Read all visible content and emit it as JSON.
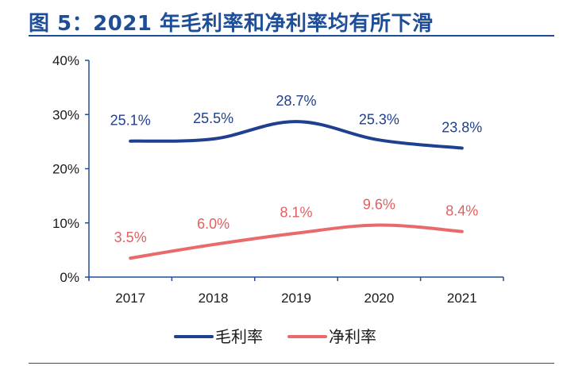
{
  "title": "图 5：2021 年毛利率和净利率均有所下滑",
  "chart_data": {
    "type": "line",
    "categories": [
      "2017",
      "2018",
      "2019",
      "2020",
      "2021"
    ],
    "series": [
      {
        "name": "毛利率",
        "values": [
          25.1,
          25.5,
          28.7,
          25.3,
          23.8
        ],
        "labels": [
          "25.1%",
          "25.5%",
          "28.7%",
          "25.3%",
          "23.8%"
        ],
        "color": "#1f3f8f",
        "label_color": "#1f3f8f"
      },
      {
        "name": "净利率",
        "values": [
          3.5,
          6.0,
          8.1,
          9.6,
          8.4
        ],
        "labels": [
          "3.5%",
          "6.0%",
          "8.1%",
          "9.6%",
          "8.4%"
        ],
        "color": "#e86a6a",
        "label_color": "#e06060"
      }
    ],
    "ylim": [
      0,
      40
    ],
    "yticks": [
      {
        "value": 0,
        "label": "0%"
      },
      {
        "value": 10,
        "label": "10%"
      },
      {
        "value": 20,
        "label": "20%"
      },
      {
        "value": 30,
        "label": "30%"
      },
      {
        "value": 40,
        "label": "40%"
      }
    ],
    "smooth": true,
    "grid": false,
    "legend_position": "bottom-center",
    "axis_color": "#1f4e99"
  }
}
